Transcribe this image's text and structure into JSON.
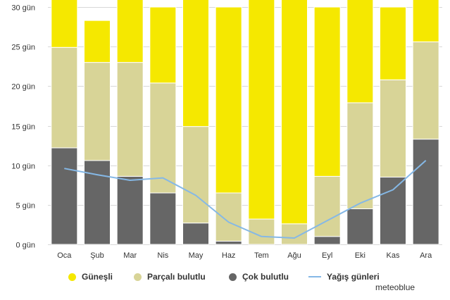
{
  "chart_data": {
    "type": "bar",
    "stacked": true,
    "categories": [
      "Oca",
      "Şub",
      "Mar",
      "Nis",
      "May",
      "Haz",
      "Tem",
      "Ağu",
      "Eyl",
      "Eki",
      "Kas",
      "Ara"
    ],
    "series": [
      {
        "name": "Çok bulutlu",
        "type": "bar",
        "color": "#666666",
        "values": [
          12.2,
          10.6,
          8.6,
          6.5,
          2.7,
          0.4,
          0.0,
          0.0,
          1.0,
          4.5,
          8.5,
          13.3
        ]
      },
      {
        "name": "Parçalı bulutlu",
        "type": "bar",
        "color": "#d8d497",
        "values": [
          12.7,
          12.4,
          14.4,
          13.9,
          12.2,
          6.1,
          3.2,
          2.6,
          7.6,
          13.4,
          12.3,
          12.3
        ]
      },
      {
        "name": "Güneşli",
        "type": "bar",
        "color": "#f5e800",
        "values": [
          6.1,
          5.3,
          8.0,
          9.6,
          16.1,
          23.5,
          27.8,
          28.4,
          21.4,
          13.1,
          9.2,
          5.4
        ]
      },
      {
        "name": "Yağış günleri",
        "type": "line",
        "color": "#85b8e6",
        "values": [
          9.6,
          8.8,
          8.1,
          8.4,
          6.2,
          2.8,
          1.0,
          0.8,
          3.0,
          5.2,
          6.9,
          10.6
        ]
      }
    ],
    "ylim": [
      0,
      30
    ],
    "yticks": [
      0,
      5,
      10,
      15,
      20,
      25,
      30
    ],
    "ytick_suffix": " gün",
    "xlabel": "",
    "ylabel": "",
    "grid": true,
    "legend_position": "bottom"
  },
  "legend": {
    "items": [
      {
        "label": "Güneşli",
        "color": "#f5e800",
        "symbol": "dot"
      },
      {
        "label": "Parçalı bulutlu",
        "color": "#d8d497",
        "symbol": "dot"
      },
      {
        "label": "Çok bulutlu",
        "color": "#666666",
        "symbol": "dot"
      },
      {
        "label": "Yağış günleri",
        "color": "#85b8e6",
        "symbol": "line"
      }
    ]
  },
  "credit": "meteoblue"
}
